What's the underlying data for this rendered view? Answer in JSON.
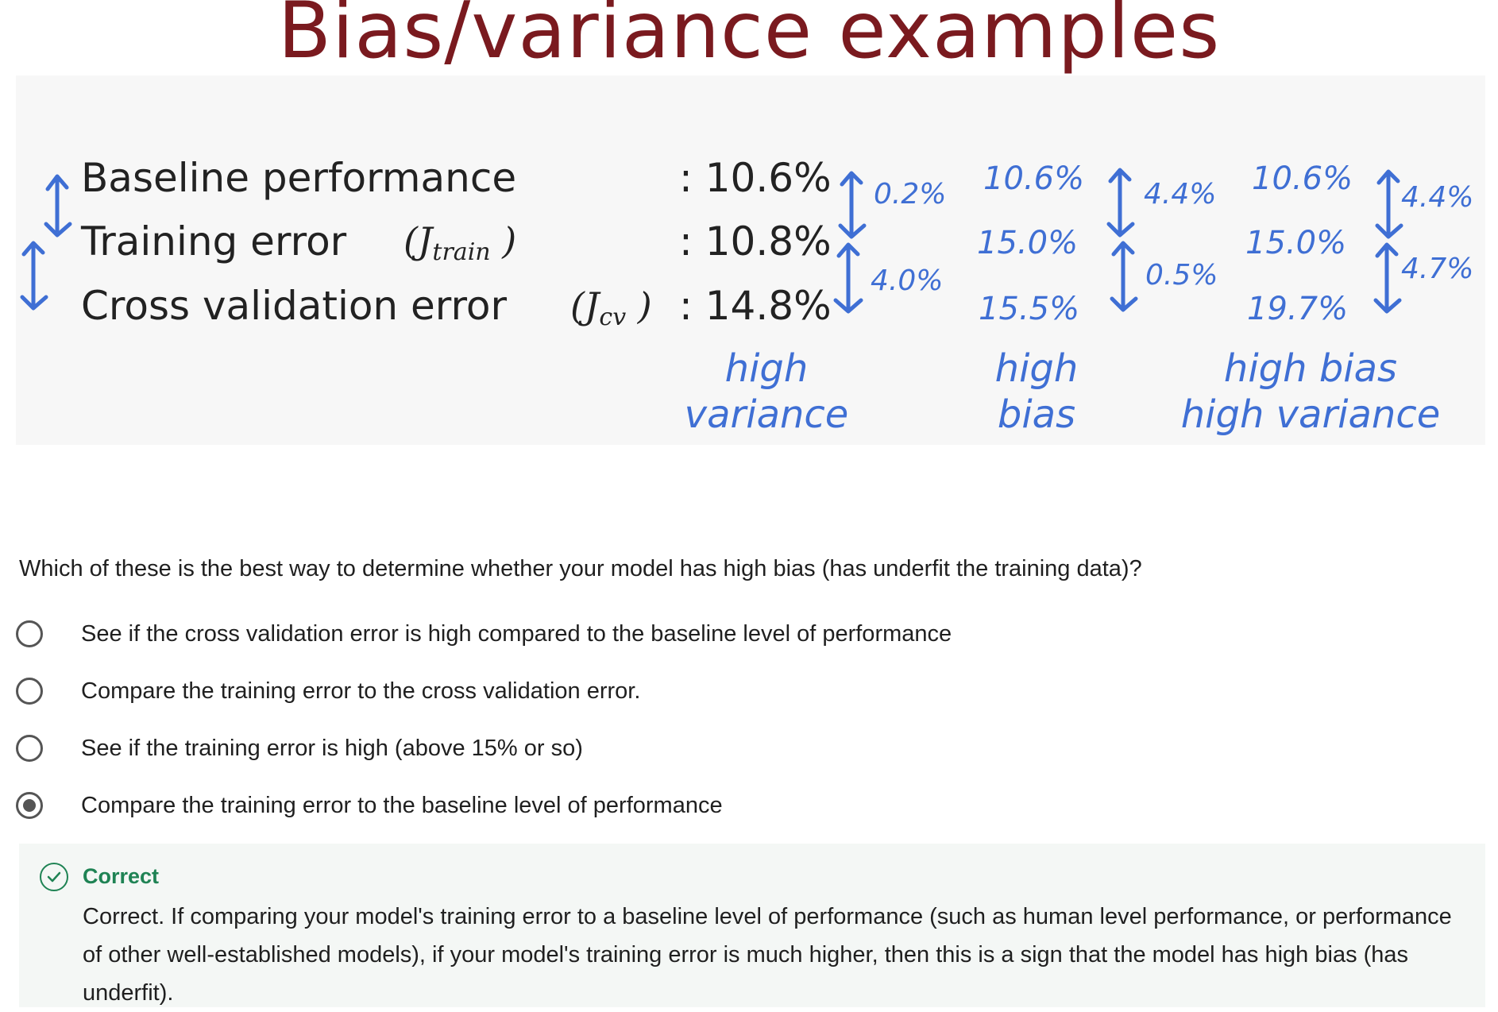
{
  "slide": {
    "title": "Bias/variance examples",
    "rows": [
      {
        "label": "Baseline performance",
        "symbol": "",
        "symbol_sub": "",
        "value": ": 10.6%"
      },
      {
        "label": "Training error",
        "symbol": "J",
        "symbol_sub": "train",
        "value": ": 10.8%"
      },
      {
        "label": "Cross validation error",
        "symbol": "J",
        "symbol_sub": "cv",
        "value": ": 14.8%"
      }
    ],
    "examples": [
      {
        "gap1": "0.2%",
        "gap2": "4.0%",
        "values": [
          "",
          "",
          ""
        ],
        "label_line1": "high",
        "label_line2": "variance"
      },
      {
        "gap1": "4.4%",
        "gap2": "0.5%",
        "values": [
          "10.6%",
          "15.0%",
          "15.5%"
        ],
        "label_line1": "high",
        "label_line2": "bias"
      },
      {
        "gap1": "4.4%",
        "gap2": "4.7%",
        "values": [
          "10.6%",
          "15.0%",
          "19.7%"
        ],
        "label_line1": "high bias",
        "label_line2": "high variance"
      }
    ],
    "colors": {
      "title": "#7a1a1f",
      "handwriting": "#3f6fd4"
    }
  },
  "quiz": {
    "question": "Which of these is the best way to determine whether your model has high bias (has underfit the training data)?",
    "options": [
      {
        "label": "See if the cross validation error is high compared to the baseline level of performance",
        "selected": false
      },
      {
        "label": "Compare the training error to the cross validation error.",
        "selected": false
      },
      {
        "label": "See if the training error is high (above 15% or so)",
        "selected": false
      },
      {
        "label": "Compare the training error to the baseline level of performance",
        "selected": true
      }
    ],
    "feedback": {
      "status": "Correct",
      "text": "Correct. If comparing your model's training error to a baseline level of performance (such as human level performance, or performance of other well-established models), if your model's training error is much higher, then this is a sign that the model has high bias (has underfit).",
      "color": "#1f8354"
    }
  }
}
